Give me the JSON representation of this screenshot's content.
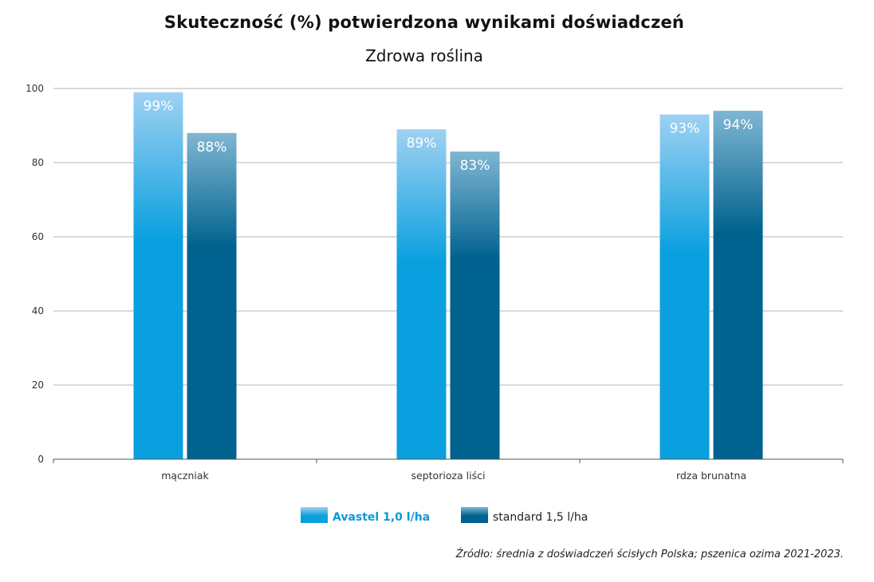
{
  "chart_data": {
    "type": "bar",
    "title": "Skuteczność (%) potwierdzona wynikami doświadczeń",
    "subtitle": "Zdrowa roślina",
    "categories": [
      "mączniak",
      "septorioza liści",
      "rdza brunatna"
    ],
    "series": [
      {
        "name": "Avastel 1,0 l/ha",
        "values": [
          99,
          89,
          93
        ],
        "labels": [
          "99%",
          "89%",
          "93%"
        ],
        "color": "#0aa0df"
      },
      {
        "name": "standard 1,5 l/ha",
        "values": [
          88,
          83,
          94
        ],
        "labels": [
          "88%",
          "83%",
          "94%"
        ],
        "color": "#00628f"
      }
    ],
    "yticks": [
      "0",
      "20",
      "40",
      "60",
      "80",
      "100"
    ],
    "ylim": [
      0,
      100
    ],
    "grid": true,
    "legend_position": "bottom-center"
  },
  "source": "Źródło: średnia z doświadczeń ścisłych Polska; pszenica ozima 2021-2023."
}
